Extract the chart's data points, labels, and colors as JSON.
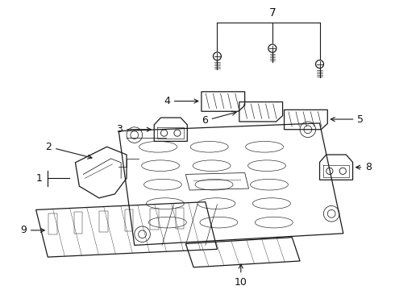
{
  "bg_color": "#ffffff",
  "line_color": "#1a1a1a",
  "label_color": "#111111",
  "fs": 9,
  "lw": 0.9,
  "lw_thin": 0.55
}
